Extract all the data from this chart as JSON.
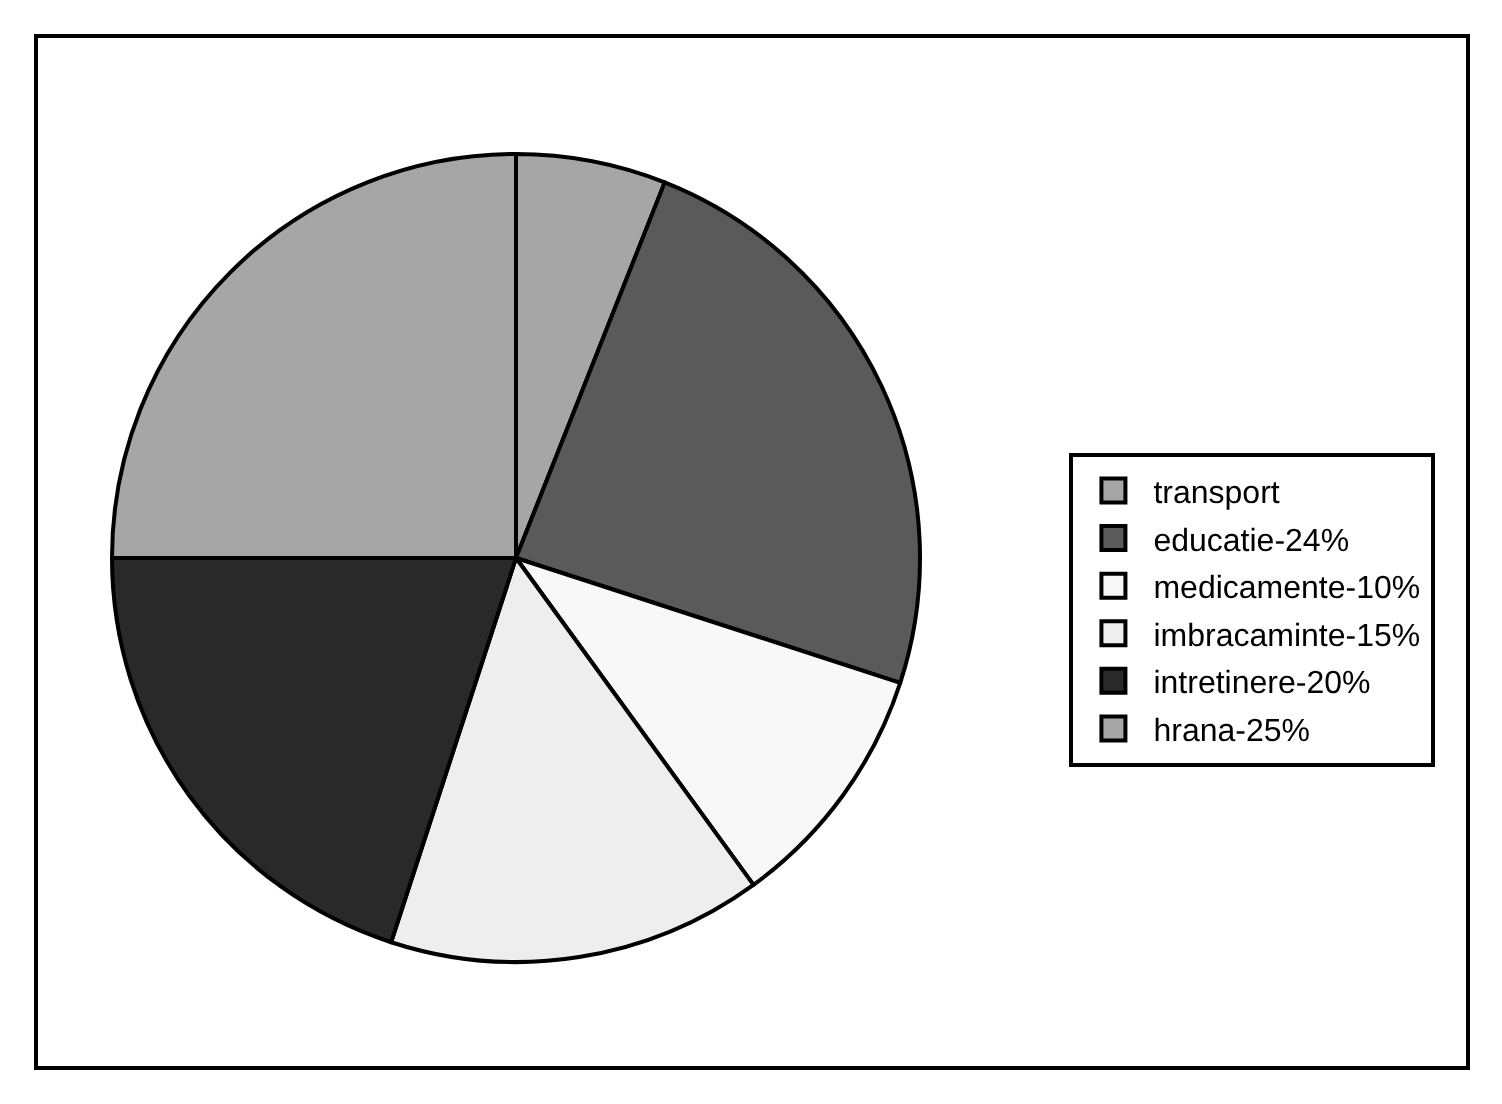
{
  "chart_data": {
    "type": "pie",
    "categories": [
      "transport",
      "educatie-24%",
      "medicamente-10%",
      "imbracaminte-15%",
      "intretinere-20%",
      "hrana-25%"
    ],
    "values": [
      6,
      24,
      10,
      15,
      20,
      25
    ],
    "colors": [
      "#a6a6a6",
      "#5a5a5a",
      "#f8f8f8",
      "#eeeeee",
      "#292929",
      "#a6a6a6"
    ],
    "legend": "right"
  }
}
